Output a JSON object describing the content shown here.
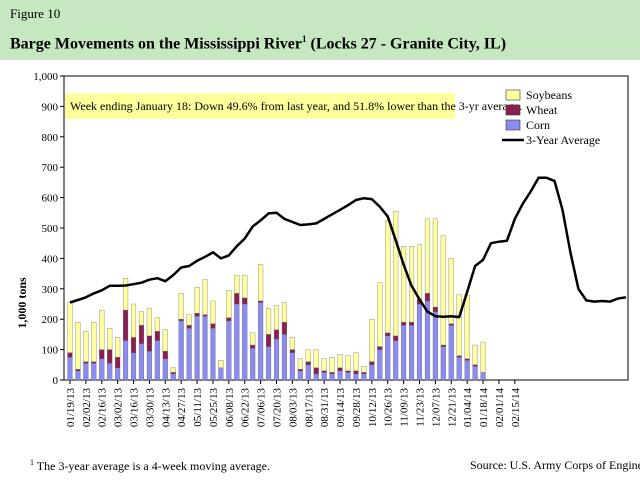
{
  "figure": {
    "label": "Figure 10",
    "title": "Barge Movements on the Mississippi River",
    "title_footnote_mark": "1",
    "title_suffix": " (Locks 27 - Granite City, IL)"
  },
  "footnote": {
    "mark": "1",
    "text": " The 3-year average is a 4-week moving average."
  },
  "source": "Source:  U.S. Army Corps of Engineers",
  "colors": {
    "header_bg": "#c6e8c0",
    "soybeans": "#ffffa0",
    "wheat": "#8b2050",
    "corn": "#8c8cf0",
    "average": "#000000",
    "annotation_bg": "#ffff9c"
  },
  "chart_data": {
    "type": "bar",
    "stacked": true,
    "ylabel": "1,000 tons",
    "ylim": [
      0,
      1000
    ],
    "yticks": [
      "0",
      "100",
      "200",
      "300",
      "400",
      "500",
      "600",
      "700",
      "800",
      "900",
      "1,000"
    ],
    "annotation": "Week ending January 18:  Down 49.6% from last year, and 51.8% lower than the 3-yr average.",
    "legend": [
      "Soybeans",
      "Wheat",
      "Corn",
      "3-Year Average"
    ],
    "legend_position": "top-right",
    "xtick_labels": [
      "01/19/13",
      "02/02/13",
      "02/16/13",
      "03/02/13",
      "03/16/13",
      "03/30/13",
      "04/13/13",
      "04/27/13",
      "05/11/13",
      "05/25/13",
      "06/08/13",
      "06/22/13",
      "07/06/13",
      "07/20/13",
      "08/03/13",
      "08/17/13",
      "08/31/13",
      "09/14/13",
      "09/28/13",
      "10/12/13",
      "10/26/13",
      "11/09/13",
      "11/23/13",
      "12/07/13",
      "12/21/13",
      "01/04/14",
      "01/18/14",
      "02/01/14",
      "02/15/14"
    ],
    "series": [
      {
        "name": "Corn",
        "values": [
          75,
          30,
          55,
          55,
          70,
          55,
          40,
          130,
          90,
          120,
          95,
          130,
          70,
          20,
          195,
          170,
          210,
          210,
          170,
          40,
          195,
          250,
          250,
          105,
          255,
          110,
          135,
          150,
          90,
          30,
          50,
          20,
          25,
          20,
          30,
          25,
          20,
          20,
          50,
          100,
          145,
          130,
          180,
          180,
          250,
          260,
          225,
          110,
          180,
          75,
          65,
          45,
          25
        ]
      },
      {
        "name": "Wheat",
        "values": [
          15,
          5,
          5,
          5,
          30,
          45,
          35,
          100,
          50,
          60,
          50,
          30,
          25,
          5,
          5,
          10,
          10,
          5,
          15,
          0,
          10,
          35,
          20,
          10,
          5,
          40,
          30,
          40,
          10,
          5,
          10,
          20,
          5,
          5,
          10,
          5,
          10,
          5,
          10,
          10,
          10,
          15,
          10,
          10,
          15,
          25,
          15,
          5,
          5,
          5,
          5,
          5,
          0
        ]
      },
      {
        "name": "Soybeans",
        "values": [
          165,
          155,
          100,
          130,
          130,
          70,
          65,
          105,
          110,
          45,
          90,
          45,
          70,
          15,
          85,
          35,
          85,
          115,
          75,
          25,
          90,
          60,
          75,
          40,
          120,
          85,
          80,
          65,
          40,
          35,
          40,
          60,
          40,
          50,
          45,
          50,
          60,
          20,
          140,
          210,
          370,
          410,
          250,
          250,
          180,
          245,
          290,
          360,
          215,
          200,
          210,
          65,
          100
        ]
      },
      {
        "name": "3-Year Average",
        "type": "line",
        "x_start_week": 0,
        "values": [
          255,
          263,
          272,
          285,
          295,
          310,
          310,
          311,
          315,
          320,
          330,
          335,
          325,
          345,
          370,
          375,
          392,
          405,
          420,
          400,
          410,
          440,
          465,
          505,
          525,
          548,
          550,
          530,
          520,
          510,
          512,
          515,
          530,
          545,
          560,
          575,
          592,
          598,
          595,
          570,
          538,
          460,
          380,
          310,
          265,
          225,
          210,
          208,
          210,
          207,
          290,
          375,
          395,
          450,
          455,
          458,
          530,
          580,
          620,
          665,
          665,
          655,
          560,
          420,
          300,
          262,
          258,
          260,
          258,
          268,
          272
        ]
      }
    ]
  }
}
